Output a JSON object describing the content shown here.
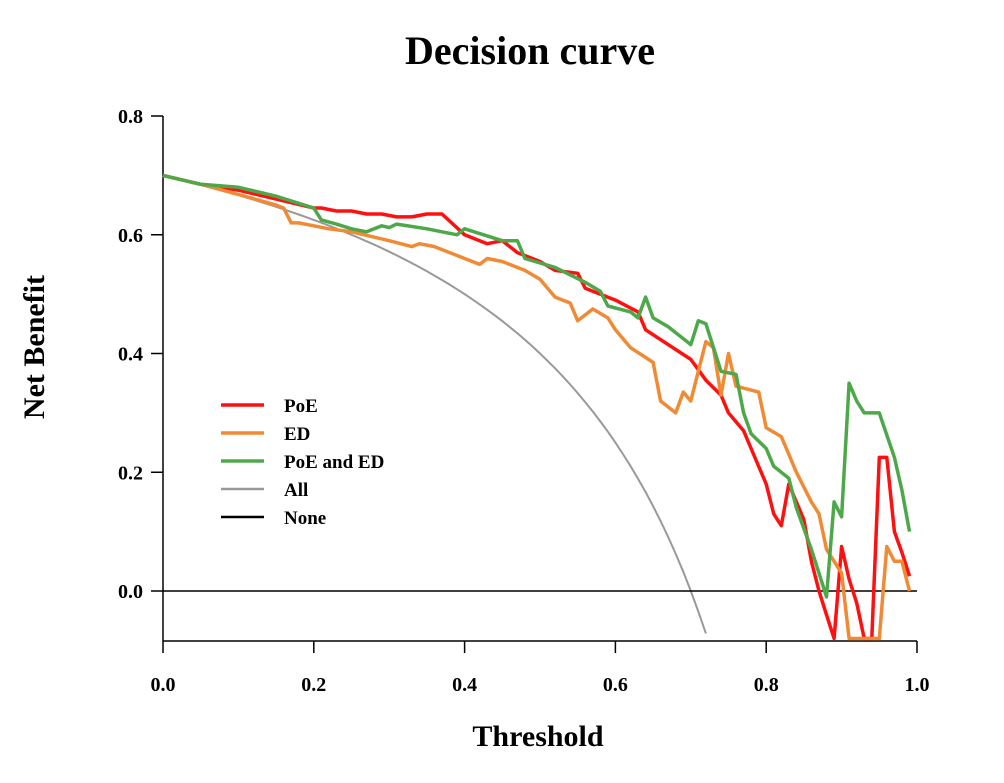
{
  "chart_data": {
    "type": "line",
    "title": "Decision curve",
    "xlabel": "Threshold",
    "ylabel": "Net Benefit",
    "xlim": [
      0.0,
      1.0
    ],
    "ylim": [
      -0.08,
      0.8
    ],
    "xticks": [
      "0.0",
      "0.2",
      "0.4",
      "0.6",
      "0.8",
      "1.0"
    ],
    "yticks": [
      "0.8",
      "0.6",
      "0.4",
      "0.2",
      "0.0"
    ],
    "grid": false,
    "legend_position": "left-center",
    "series": [
      {
        "name": "PoE",
        "color": "#ff1010",
        "x": [
          0.0,
          0.05,
          0.1,
          0.15,
          0.2,
          0.21,
          0.23,
          0.25,
          0.27,
          0.29,
          0.31,
          0.33,
          0.35,
          0.37,
          0.4,
          0.43,
          0.45,
          0.47,
          0.5,
          0.52,
          0.55,
          0.56,
          0.6,
          0.63,
          0.64,
          0.7,
          0.72,
          0.74,
          0.75,
          0.77,
          0.78,
          0.8,
          0.81,
          0.82,
          0.83,
          0.84,
          0.85,
          0.86,
          0.87,
          0.88,
          0.89,
          0.9,
          0.91,
          0.92,
          0.93,
          0.94,
          0.95,
          0.96,
          0.97,
          0.98,
          0.99
        ],
        "values": [
          0.7,
          0.685,
          0.675,
          0.66,
          0.645,
          0.645,
          0.64,
          0.64,
          0.635,
          0.635,
          0.63,
          0.63,
          0.635,
          0.635,
          0.6,
          0.585,
          0.59,
          0.57,
          0.555,
          0.54,
          0.535,
          0.51,
          0.49,
          0.47,
          0.44,
          0.39,
          0.355,
          0.33,
          0.3,
          0.27,
          0.24,
          0.18,
          0.13,
          0.11,
          0.18,
          0.15,
          0.12,
          0.05,
          0.0,
          -0.04,
          -0.08,
          0.075,
          0.02,
          -0.02,
          -0.08,
          -0.08,
          0.225,
          0.225,
          0.1,
          0.065,
          0.025
        ]
      },
      {
        "name": "ED",
        "color": "#f08a35",
        "x": [
          0.0,
          0.05,
          0.1,
          0.15,
          0.16,
          0.17,
          0.18,
          0.2,
          0.22,
          0.25,
          0.3,
          0.33,
          0.34,
          0.36,
          0.4,
          0.42,
          0.43,
          0.45,
          0.48,
          0.5,
          0.52,
          0.54,
          0.55,
          0.57,
          0.59,
          0.6,
          0.62,
          0.65,
          0.66,
          0.68,
          0.69,
          0.7,
          0.71,
          0.72,
          0.73,
          0.74,
          0.75,
          0.76,
          0.79,
          0.8,
          0.82,
          0.84,
          0.86,
          0.87,
          0.88,
          0.89,
          0.9,
          0.91,
          0.95,
          0.96,
          0.97,
          0.98,
          0.99
        ],
        "values": [
          0.7,
          0.685,
          0.668,
          0.65,
          0.645,
          0.62,
          0.62,
          0.615,
          0.61,
          0.605,
          0.59,
          0.58,
          0.585,
          0.58,
          0.56,
          0.55,
          0.56,
          0.555,
          0.54,
          0.525,
          0.495,
          0.485,
          0.455,
          0.475,
          0.46,
          0.44,
          0.41,
          0.385,
          0.32,
          0.3,
          0.335,
          0.32,
          0.37,
          0.42,
          0.41,
          0.33,
          0.4,
          0.345,
          0.335,
          0.275,
          0.26,
          0.2,
          0.15,
          0.13,
          0.07,
          0.05,
          0.03,
          -0.08,
          -0.08,
          0.075,
          0.05,
          0.05,
          0.0
        ]
      },
      {
        "name": "PoE and ED",
        "color": "#4ea84a",
        "x": [
          0.0,
          0.05,
          0.1,
          0.15,
          0.2,
          0.21,
          0.23,
          0.25,
          0.27,
          0.29,
          0.3,
          0.31,
          0.35,
          0.39,
          0.4,
          0.45,
          0.47,
          0.48,
          0.52,
          0.56,
          0.58,
          0.59,
          0.62,
          0.63,
          0.64,
          0.65,
          0.67,
          0.7,
          0.71,
          0.72,
          0.74,
          0.76,
          0.77,
          0.78,
          0.8,
          0.81,
          0.83,
          0.84,
          0.86,
          0.87,
          0.88,
          0.89,
          0.9,
          0.91,
          0.92,
          0.93,
          0.95,
          0.97,
          0.98,
          0.99
        ],
        "values": [
          0.7,
          0.685,
          0.68,
          0.665,
          0.645,
          0.625,
          0.618,
          0.61,
          0.605,
          0.615,
          0.612,
          0.618,
          0.61,
          0.6,
          0.61,
          0.59,
          0.59,
          0.56,
          0.545,
          0.52,
          0.505,
          0.48,
          0.47,
          0.46,
          0.495,
          0.46,
          0.445,
          0.415,
          0.455,
          0.45,
          0.37,
          0.365,
          0.3,
          0.265,
          0.24,
          0.21,
          0.19,
          0.14,
          0.07,
          0.03,
          -0.01,
          0.15,
          0.125,
          0.35,
          0.32,
          0.3,
          0.3,
          0.225,
          0.17,
          0.1
        ]
      },
      {
        "name": "All",
        "color": "#999999",
        "prevalence": 0.7
      },
      {
        "name": "None",
        "color": "#000000",
        "values_constant": 0.0
      }
    ]
  }
}
